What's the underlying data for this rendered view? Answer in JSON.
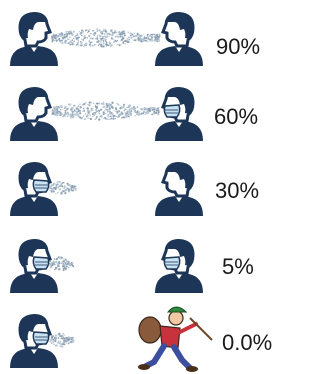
{
  "rows": [
    {
      "label": "90%"
    },
    {
      "label": "60%"
    },
    {
      "label": "30%"
    },
    {
      "label": "5%"
    },
    {
      "label": "0.0%"
    }
  ]
}
